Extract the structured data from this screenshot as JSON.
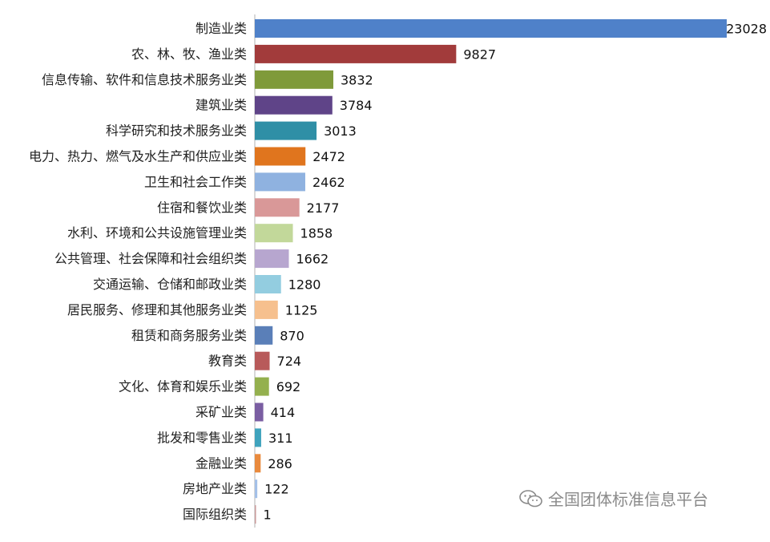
{
  "chart_data": {
    "type": "bar",
    "orientation": "horizontal",
    "title": "",
    "xlabel": "",
    "ylabel": "",
    "xlim": [
      0,
      23500
    ],
    "grid": false,
    "categories": [
      "制造业类",
      "农、林、牧、渔业类",
      "信息传输、软件和信息技术服务业类",
      "建筑业类",
      "科学研究和技术服务业类",
      "电力、热力、燃气及水生产和供应业类",
      "卫生和社会工作类",
      "住宿和餐饮业类",
      "水利、环境和公共设施管理业类",
      "公共管理、社会保障和社会组织类",
      "交通运输、仓储和邮政业类",
      "居民服务、修理和其他服务业类",
      "租赁和商务服务业类",
      "教育类",
      "文化、体育和娱乐业类",
      "采矿业类",
      "批发和零售业类",
      "金融业类",
      "房地产业类",
      "国际组织类"
    ],
    "values": [
      23028,
      9827,
      3832,
      3784,
      3013,
      2472,
      2462,
      2177,
      1858,
      1662,
      1280,
      1125,
      870,
      724,
      692,
      414,
      311,
      286,
      122,
      1
    ],
    "colors": [
      "#4f81c9",
      "#a23b3b",
      "#7f9a3a",
      "#5f4488",
      "#2f8fa6",
      "#e0751e",
      "#8fb2e0",
      "#d99898",
      "#c2d89a",
      "#b7a6cf",
      "#93cde0",
      "#f6c08e",
      "#5a7fb8",
      "#b85a5a",
      "#94b04e",
      "#7a5ea2",
      "#3fa3bd",
      "#e98a3d",
      "#a4c0e8",
      "#c89a9a"
    ]
  },
  "watermark": {
    "icon": "wechat-icon",
    "text": "全国团体标准信息平台"
  }
}
